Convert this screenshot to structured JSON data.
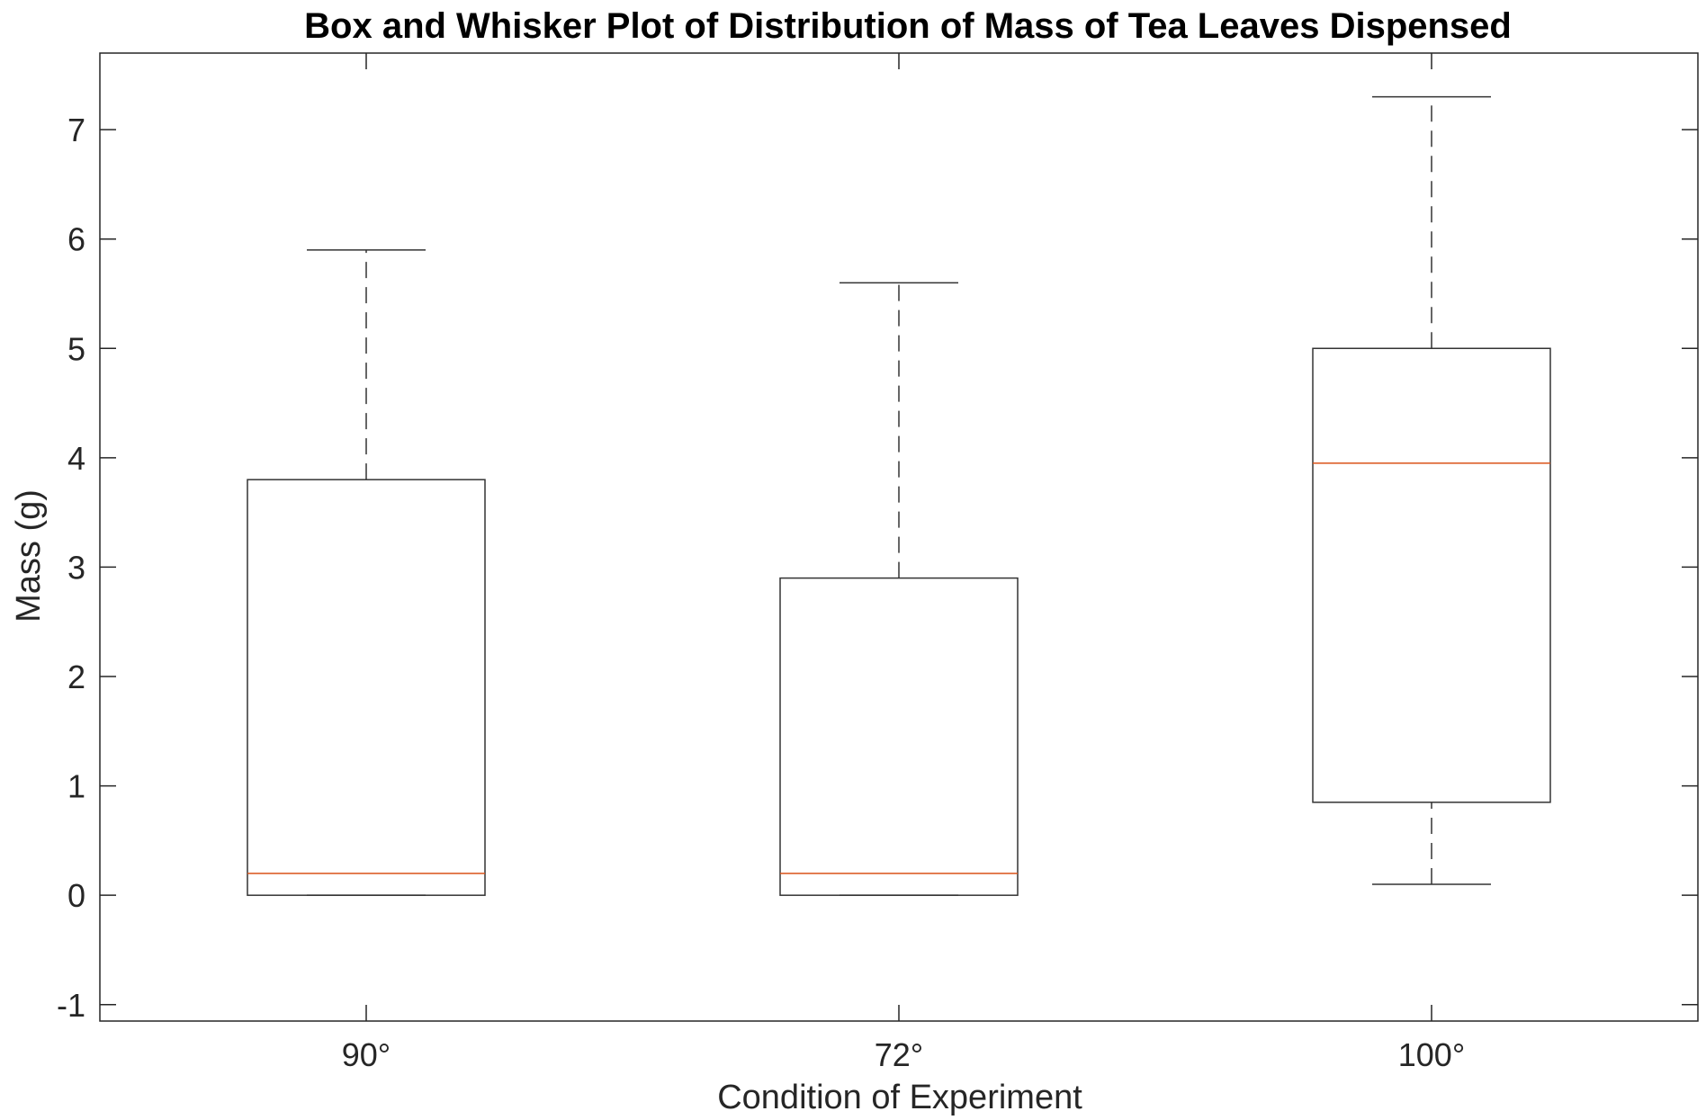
{
  "chart_data": {
    "type": "box",
    "title": "Box and Whisker Plot of Distribution of Mass of Tea Leaves Dispensed",
    "xlabel": "Condition of Experiment",
    "ylabel": "Mass (g)",
    "ylim": [
      -1.15,
      7.7
    ],
    "yticks": [
      -1,
      0,
      1,
      2,
      3,
      4,
      5,
      6,
      7
    ],
    "categories": [
      "90°",
      "72°",
      "100°"
    ],
    "boxes": [
      {
        "category": "90°",
        "min": 0,
        "q1": 0,
        "median": 0.2,
        "q3": 3.8,
        "max": 5.9
      },
      {
        "category": "72°",
        "min": 0,
        "q1": 0,
        "median": 0.2,
        "q3": 2.9,
        "max": 5.6
      },
      {
        "category": "100°",
        "min": 0.1,
        "q1": 0.85,
        "median": 3.95,
        "q3": 5.0,
        "max": 7.3
      }
    ],
    "colors": {
      "box": "#333333",
      "median": "#d95319",
      "axes": "#262626"
    },
    "grid": false,
    "legend": "none"
  }
}
